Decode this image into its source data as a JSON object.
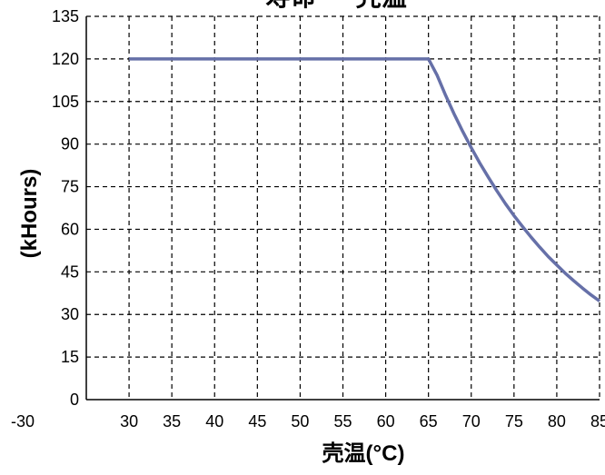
{
  "chart_data": {
    "type": "line",
    "title": "寿命 — 壳温",
    "xlabel": "壳温(°C)",
    "ylabel": "(kHours)",
    "x_ticks": [
      "-30",
      "30",
      "35",
      "40",
      "45",
      "50",
      "55",
      "60",
      "65",
      "70",
      "75",
      "80",
      "85"
    ],
    "y_ticks": [
      "0",
      "15",
      "30",
      "45",
      "60",
      "75",
      "90",
      "105",
      "120",
      "135"
    ],
    "xlim": [
      25,
      85
    ],
    "ylim": [
      0,
      135
    ],
    "grid": true,
    "series": [
      {
        "x": [
          30,
          35,
          40,
          45,
          50,
          55,
          60,
          65,
          66,
          67,
          68,
          69,
          70,
          71,
          72,
          73,
          74,
          75,
          76,
          77,
          78,
          79,
          80,
          81,
          82,
          83,
          84,
          85
        ],
        "y": [
          120,
          120,
          120,
          120,
          120,
          120,
          120,
          120,
          114.3,
          107.2,
          100.6,
          94.5,
          88.7,
          83.3,
          78.3,
          73.5,
          69.0,
          64.8,
          60.9,
          57.2,
          53.7,
          50.4,
          47.4,
          44.5,
          41.8,
          39.3,
          36.9,
          34.7
        ]
      }
    ],
    "colors": {
      "line": "#6670a8",
      "axis": "#000000",
      "grid": "#000000"
    }
  }
}
